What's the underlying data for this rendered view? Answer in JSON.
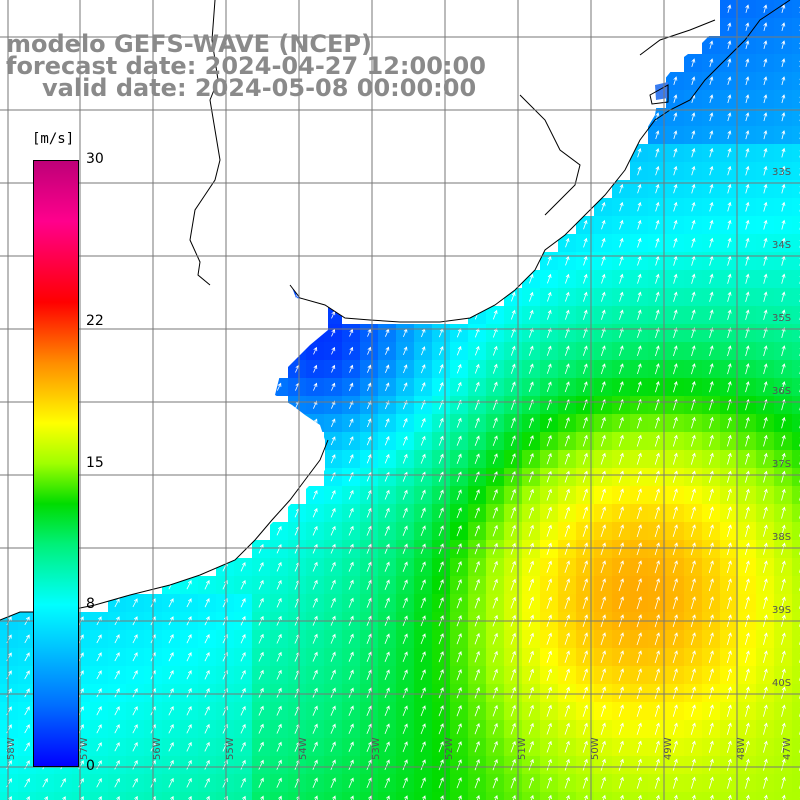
{
  "header": {
    "line1": "modelo GEFS-WAVE (NCEP)",
    "line2": "forecast date: 2024-04-27 12:00:00",
    "line3": "valid date: 2024-05-08 00:00:00"
  },
  "colorbar": {
    "units": "[m/s]",
    "ticks": [
      {
        "value": 30,
        "label": "30"
      },
      {
        "value": 22,
        "label": "22"
      },
      {
        "value": 15,
        "label": "15"
      },
      {
        "value": 8,
        "label": "8"
      },
      {
        "value": 0,
        "label": "0"
      }
    ],
    "min": 0,
    "max": 30
  },
  "map": {
    "lat_labels": [
      "33S",
      "34S",
      "35S",
      "36S",
      "37S",
      "38S",
      "39S",
      "40S"
    ],
    "lon_labels": [
      "58W",
      "57W",
      "56W",
      "55W",
      "54W",
      "53W",
      "52W",
      "51W",
      "50W",
      "49W",
      "48W",
      "47W"
    ],
    "colors": {
      "land": "#ffffff",
      "coast": "#000000",
      "grid": "#777777",
      "arrow": "#ffffff"
    }
  }
}
